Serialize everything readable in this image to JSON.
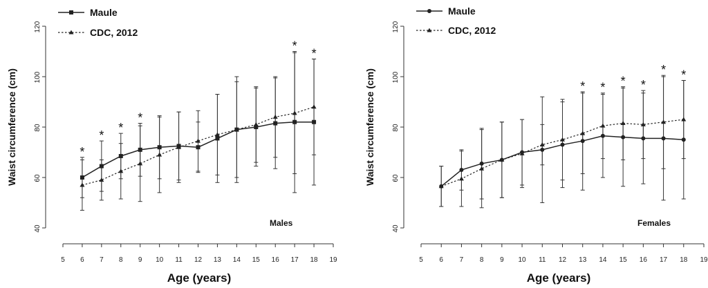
{
  "chart_data": [
    {
      "type": "line",
      "title": "Males",
      "xlabel": "Age (years)",
      "ylabel": "Waist circumference (cm)",
      "xlim": [
        5,
        19
      ],
      "ylim": [
        40,
        120
      ],
      "xticks": [
        5,
        6,
        7,
        8,
        9,
        10,
        11,
        12,
        13,
        14,
        15,
        16,
        17,
        18,
        19
      ],
      "yticks": [
        40,
        60,
        80,
        100,
        120
      ],
      "legend": "top-left",
      "x": [
        6,
        7,
        8,
        9,
        10,
        11,
        12,
        13,
        14,
        15,
        16,
        17,
        18
      ],
      "series": [
        {
          "name": "Maule",
          "style": "solid",
          "marker": "square",
          "values": [
            60,
            64.5,
            68.5,
            71,
            72,
            72.5,
            72,
            75.5,
            79,
            80,
            81.5,
            82,
            82
          ],
          "error": [
            8,
            10,
            9,
            10.5,
            12.5,
            13.5,
            10,
            17.5,
            19,
            15.5,
            18,
            28,
            25
          ]
        },
        {
          "name": "CDC, 2012",
          "style": "dotted",
          "marker": "triangle",
          "values": [
            57,
            59,
            62.5,
            65.5,
            69,
            72,
            74.5,
            77,
            79,
            81,
            84,
            85.5,
            88
          ],
          "error": [
            10,
            8,
            11,
            15,
            15,
            14,
            12,
            16,
            21,
            15,
            16,
            24,
            19
          ]
        }
      ],
      "significant_ages": [
        6,
        7,
        8,
        9,
        17,
        18
      ],
      "significance_symbol": "*"
    },
    {
      "type": "line",
      "title": "Females",
      "xlabel": "Age (years)",
      "ylabel": "Waist circumference (cm)",
      "xlim": [
        5,
        19
      ],
      "ylim": [
        40,
        120
      ],
      "xticks": [
        5,
        6,
        7,
        8,
        9,
        10,
        11,
        12,
        13,
        14,
        15,
        16,
        17,
        18,
        19
      ],
      "yticks": [
        40,
        60,
        80,
        100,
        120
      ],
      "legend": "top-left",
      "x": [
        6,
        7,
        8,
        9,
        10,
        11,
        12,
        13,
        14,
        15,
        16,
        17,
        18
      ],
      "series": [
        {
          "name": "Maule",
          "style": "solid",
          "marker": "circle",
          "values": [
            56.5,
            63,
            65.5,
            67,
            70,
            71,
            73,
            74.5,
            76.5,
            76,
            75.5,
            75.5,
            75
          ],
          "error": [
            8,
            8,
            14,
            15,
            13,
            21,
            17,
            19.5,
            16.5,
            19.5,
            18,
            24.5,
            23.5
          ]
        },
        {
          "name": "CDC, 2012",
          "style": "dotted",
          "marker": "triangle",
          "values": [
            56.5,
            59.5,
            63.5,
            67,
            69.5,
            73,
            75,
            77.5,
            80.5,
            81.5,
            81,
            82,
            83
          ],
          "error": [
            8,
            11,
            15.5,
            15,
            13.5,
            8,
            16,
            16,
            13,
            14.5,
            13.5,
            18.5,
            15.5
          ]
        }
      ],
      "significant_ages": [
        13,
        14,
        15,
        16,
        17,
        18
      ],
      "significance_symbol": "*"
    }
  ]
}
